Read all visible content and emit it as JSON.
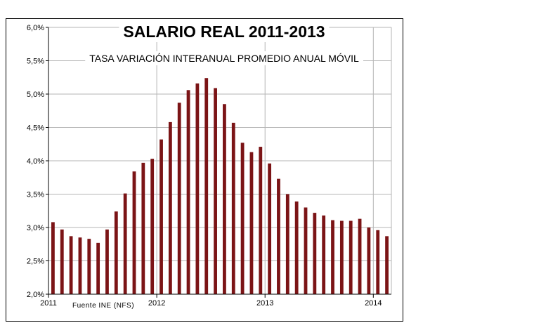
{
  "chart_data": {
    "type": "bar",
    "title": "SALARIO REAL 2011-2013",
    "subtitle": "TASA VARIACIÓN INTERANUAL PROMEDIO ANUAL MÓVIL",
    "source_note": "Fuente INE (NFS)",
    "xlabel": "",
    "ylabel": "",
    "ylim": [
      2.0,
      6.0
    ],
    "yticks": [
      "6,0%",
      "5,5%",
      "5,0%",
      "4,5%",
      "4,0%",
      "3,5%",
      "3,0%",
      "2,5%",
      "2,0%"
    ],
    "xticks": [
      {
        "label": "2011",
        "index": 0
      },
      {
        "label": "2012",
        "index": 12
      },
      {
        "label": "2013",
        "index": 24
      },
      {
        "label": "2014",
        "index": 36
      }
    ],
    "bar_color": "#7b1416",
    "categories": [
      "2011-01",
      "2011-02",
      "2011-03",
      "2011-04",
      "2011-05",
      "2011-06",
      "2011-07",
      "2011-08",
      "2011-09",
      "2011-10",
      "2011-11",
      "2011-12",
      "2012-01",
      "2012-02",
      "2012-03",
      "2012-04",
      "2012-05",
      "2012-06",
      "2012-07",
      "2012-08",
      "2012-09",
      "2012-10",
      "2012-11",
      "2012-12",
      "2013-01",
      "2013-02",
      "2013-03",
      "2013-04",
      "2013-05",
      "2013-06",
      "2013-07",
      "2013-08",
      "2013-09",
      "2013-10",
      "2013-11",
      "2013-12",
      "2014-01",
      "2014-02"
    ],
    "values": [
      3.08,
      2.97,
      2.87,
      2.85,
      2.83,
      2.77,
      2.97,
      3.24,
      3.51,
      3.84,
      3.97,
      4.03,
      4.32,
      4.58,
      4.87,
      5.06,
      5.16,
      5.24,
      5.09,
      4.85,
      4.57,
      4.27,
      4.13,
      4.21,
      3.96,
      3.73,
      3.5,
      3.39,
      3.3,
      3.22,
      3.18,
      3.11,
      3.1,
      3.1,
      3.13,
      3.0,
      2.96,
      2.87
    ]
  }
}
